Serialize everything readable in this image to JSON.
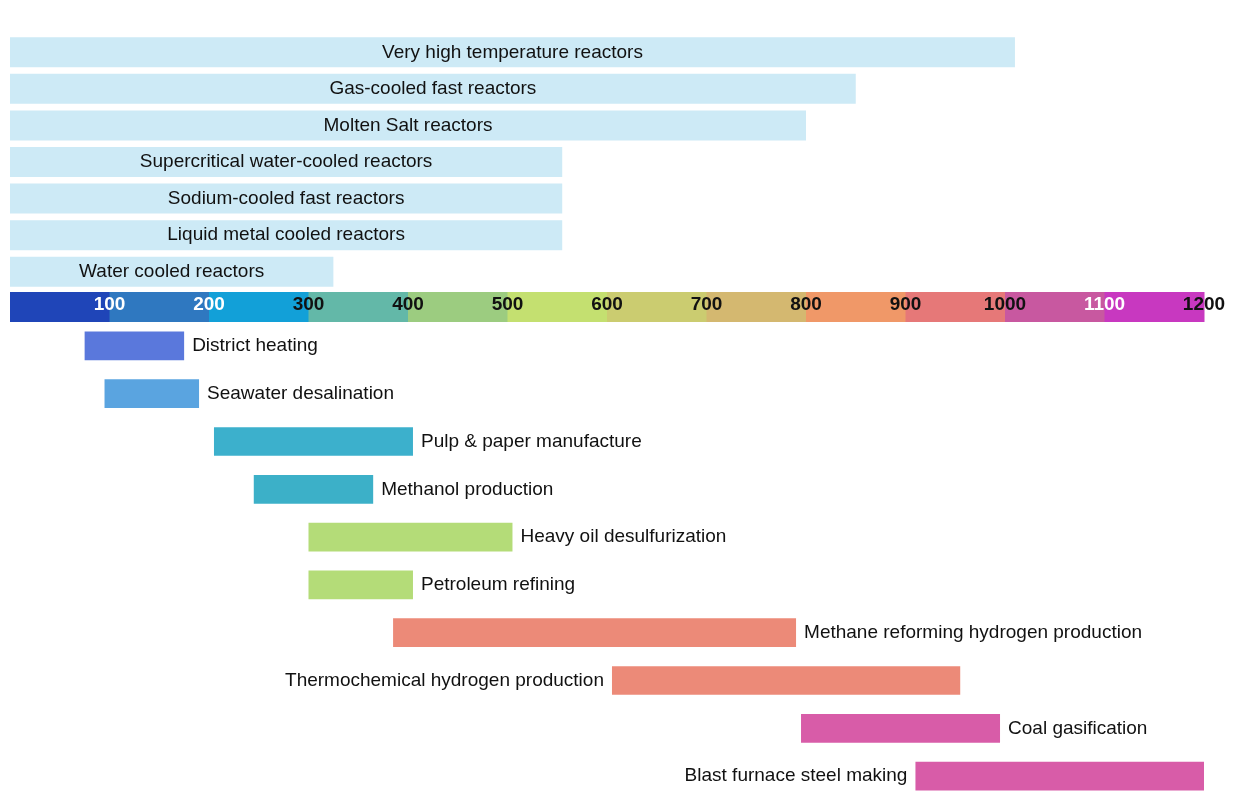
{
  "chart_data": [
    {
      "type": "bar",
      "orientation": "horizontal",
      "categories": [
        "Very high temperature reactors",
        "Gas-cooled fast reactors",
        "Molten Salt reactors",
        "Supercritical water-cooled reactors",
        "Sodium-cooled fast reactors",
        "Liquid metal cooled reactors",
        "Water cooled reactors"
      ],
      "values": [
        1010,
        850,
        800,
        555,
        555,
        555,
        325
      ],
      "color": "#cdeaf6",
      "xlim": [
        0,
        1200
      ],
      "xticks": [
        100,
        200,
        300,
        400,
        500,
        600,
        700,
        800,
        900,
        1000,
        1100,
        1200
      ],
      "tick_labels": false,
      "grid": false,
      "legend": false
    },
    {
      "type": "bar",
      "orientation": "horizontal",
      "categories": [
        "District heating",
        "Seawater desalination",
        "Pulp & paper manufacture",
        "Methanol production",
        "Heavy oil desulfurization",
        "Petroleum refining",
        "Methane reforming hydrogen production",
        "Thermochemical hydrogen production",
        "Coal gasification",
        "Blast furnace steel making"
      ],
      "base": [
        75,
        95,
        205,
        245,
        300,
        300,
        385,
        605,
        795,
        910
      ],
      "values": [
        100,
        95,
        200,
        120,
        205,
        105,
        405,
        350,
        200,
        300
      ],
      "colors": [
        "#5a78dc",
        "#5aa4e0",
        "#3cb0cc",
        "#3cb0c8",
        "#b4dc78",
        "#b4dc78",
        "#ec8a78",
        "#ec8a78",
        "#d85ca8",
        "#d85ca8"
      ],
      "xlim": [
        0,
        1200
      ],
      "xticks": [
        100,
        200,
        300,
        400,
        500,
        600,
        700,
        800,
        900,
        1000,
        1100,
        1200
      ],
      "tick_labels": "x",
      "grid": false,
      "legend": false
    }
  ]
}
